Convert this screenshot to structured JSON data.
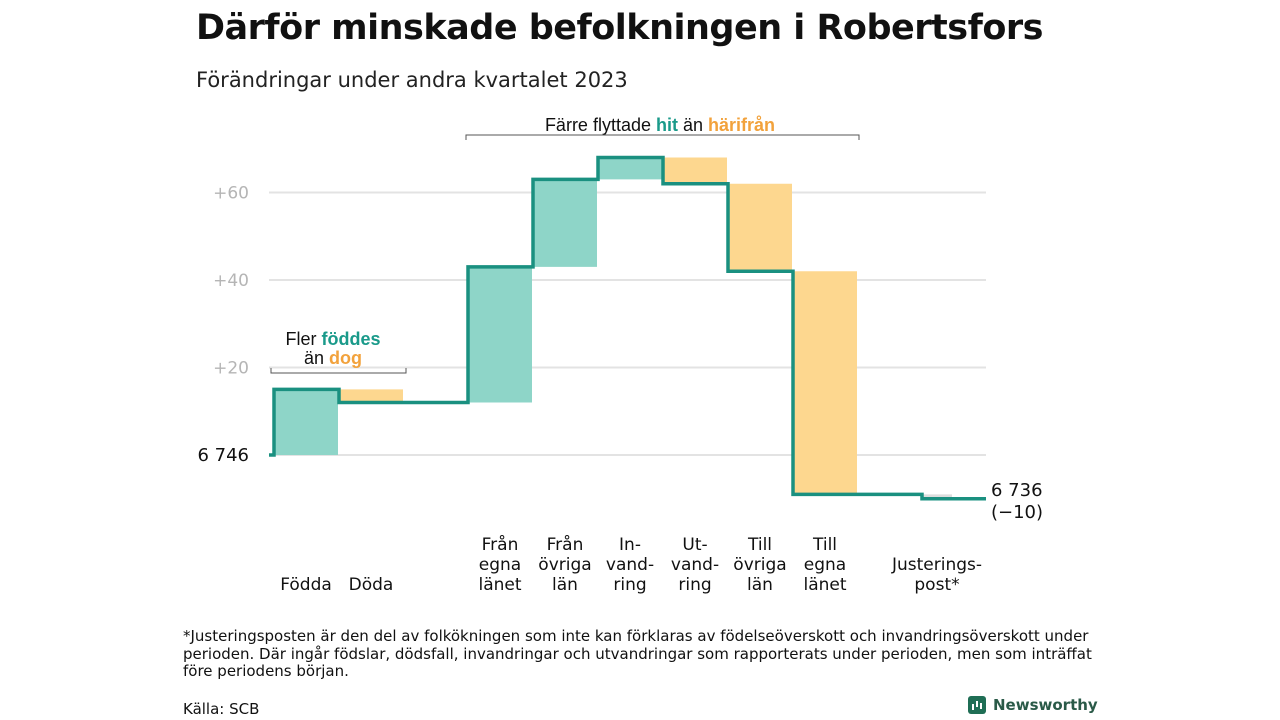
{
  "header": {
    "title": "Därför minskade befolkningen i Robertsfors",
    "subtitle": "Förändringar under andra kvartalet 2023"
  },
  "chart_data": {
    "type": "waterfall",
    "start_value": 6746,
    "start_label": "6  746",
    "end_value": 6736,
    "end_label": "6 736",
    "end_change_label": "(−10)",
    "ylim": [
      -10,
      70
    ],
    "y_ticks": [
      {
        "value": 20,
        "label": "+20"
      },
      {
        "value": 40,
        "label": "+40"
      },
      {
        "value": 60,
        "label": "+60"
      }
    ],
    "steps": [
      {
        "name": "Födda",
        "label_lines": [
          "Födda"
        ],
        "change": 15,
        "kind": "increase"
      },
      {
        "name": "Döda",
        "label_lines": [
          "Döda"
        ],
        "change": -3,
        "kind": "decrease"
      },
      {
        "name": "Från egna länet",
        "label_lines": [
          "Från",
          "egna",
          "länet"
        ],
        "change": 31,
        "kind": "increase"
      },
      {
        "name": "Från övriga län",
        "label_lines": [
          "Från",
          "övriga",
          "län"
        ],
        "change": 20,
        "kind": "increase"
      },
      {
        "name": "Invandring",
        "label_lines": [
          "In-",
          "vand-",
          "ring"
        ],
        "change": 5,
        "kind": "increase"
      },
      {
        "name": "Utvandring",
        "label_lines": [
          "Ut-",
          "vand-",
          "ring"
        ],
        "change": -6,
        "kind": "decrease"
      },
      {
        "name": "Till övriga län",
        "label_lines": [
          "Till",
          "övriga",
          "län"
        ],
        "change": -20,
        "kind": "decrease"
      },
      {
        "name": "Till egna länet",
        "label_lines": [
          "Till",
          "egna",
          "länet"
        ],
        "change": -51,
        "kind": "decrease"
      },
      {
        "name": "Justeringspost",
        "label_lines": [
          "Justerings-",
          "post*"
        ],
        "change": -1,
        "kind": "adjustment"
      }
    ],
    "annotations": [
      {
        "text_parts": [
          {
            "text": "Fler ",
            "role": "neutral"
          },
          {
            "text": "föddes",
            "role": "increase"
          },
          {
            "text": "än ",
            "role": "neutral"
          },
          {
            "text": "dog",
            "role": "decrease"
          }
        ],
        "span": [
          "Födda",
          "Döda"
        ]
      },
      {
        "text_parts": [
          {
            "text": "Färre flyttade ",
            "role": "neutral"
          },
          {
            "text": "hit",
            "role": "increase"
          },
          {
            "text": " än ",
            "role": "neutral"
          },
          {
            "text": "härifrån",
            "role": "decrease"
          }
        ],
        "span": [
          "Från egna länet",
          "Till egna länet"
        ]
      }
    ],
    "colors": {
      "increase": "#8ed5c8",
      "decrease": "#fdd78f",
      "line": "#1a9080",
      "increase_text": "#1a9a8a",
      "decrease_text": "#f2a23c",
      "grid": "#e3e3e3",
      "tick": "#b5b5b5",
      "adjustment": "#dddddd"
    }
  },
  "footnote": "*Justeringsposten är den del av folkökningen som inte kan förklaras av födelseöverskott och invandringsöverskott under perioden. Där ingår födslar, dödsfall, invandringar och utvandringar som rapporterats under perioden, men som inträffat före periodens början.",
  "source": "Källa: SCB",
  "brand": {
    "name": "Newsworthy",
    "icon": "newsworthy-logo-icon"
  }
}
